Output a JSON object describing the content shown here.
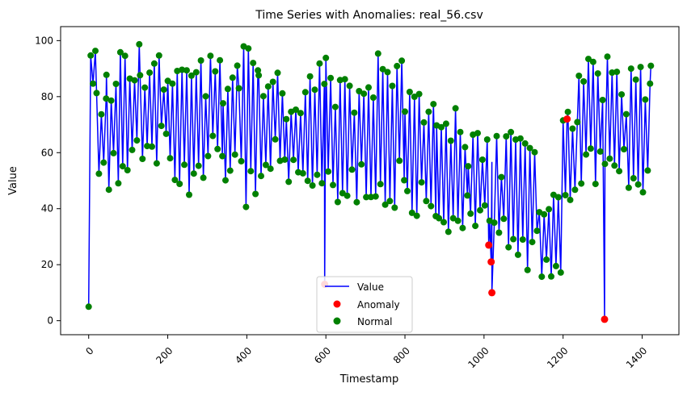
{
  "chart_data": {
    "type": "line",
    "title": "Time Series with Anomalies: real_56.csv",
    "xlabel": "Timestamp",
    "ylabel": "Value",
    "xlim": [
      -71,
      1493
    ],
    "ylim": [
      -5,
      105
    ],
    "xticks": [
      0,
      200,
      400,
      600,
      800,
      1000,
      1200,
      1400
    ],
    "yticks": [
      0,
      20,
      40,
      60,
      80,
      100
    ],
    "grid": false,
    "legend_position": "bottom-center",
    "legend": [
      {
        "label": "Value",
        "kind": "line",
        "color": "#0000ff"
      },
      {
        "label": "Anomaly",
        "kind": "point",
        "color": "#ff0000"
      },
      {
        "label": "Normal",
        "kind": "point",
        "color": "#008000"
      }
    ],
    "series": [
      {
        "name": "Value",
        "kind": "line",
        "color": "#0000ff",
        "n_points": 1422,
        "note_pattern": "oscillating values, sampled envelope per segment",
        "segments": [
          {
            "x": [
              0,
              5
            ],
            "low": 0,
            "high": 5
          },
          {
            "x": [
              5,
              20
            ],
            "low": 80,
            "high": 98
          },
          {
            "x": [
              20,
              45
            ],
            "low": 50,
            "high": 86
          },
          {
            "x": [
              45,
              80
            ],
            "low": 45,
            "high": 92
          },
          {
            "x": [
              80,
              130
            ],
            "low": 52,
            "high": 100
          },
          {
            "x": [
              130,
              200
            ],
            "low": 56,
            "high": 95
          },
          {
            "x": [
              200,
              260
            ],
            "low": 44,
            "high": 96
          },
          {
            "x": [
              260,
              340
            ],
            "low": 50,
            "high": 96
          },
          {
            "x": [
              340,
              380
            ],
            "low": 47,
            "high": 94
          },
          {
            "x": [
              380,
              430
            ],
            "low": 40,
            "high": 100
          },
          {
            "x": [
              430,
              500
            ],
            "low": 50,
            "high": 96
          },
          {
            "x": [
              500,
              560
            ],
            "low": 45,
            "high": 86
          },
          {
            "x": [
              560,
              600
            ],
            "low": 40,
            "high": 93
          },
          {
            "x": [
              600,
              660
            ],
            "low": 40,
            "high": 94
          },
          {
            "x": [
              660,
              720
            ],
            "low": 42,
            "high": 90
          },
          {
            "x": [
              720,
              800
            ],
            "low": 36,
            "high": 97
          },
          {
            "x": [
              800,
              880
            ],
            "low": 32,
            "high": 84
          },
          {
            "x": [
              880,
              960
            ],
            "low": 30,
            "high": 76
          },
          {
            "x": [
              960,
              1020
            ],
            "low": 26,
            "high": 70
          },
          {
            "x": [
              1020,
              1080
            ],
            "low": 20,
            "high": 68
          },
          {
            "x": [
              1080,
              1140
            ],
            "low": 14,
            "high": 68
          },
          {
            "x": [
              1140,
              1200
            ],
            "low": 10,
            "high": 46
          },
          {
            "x": [
              1200,
              1240
            ],
            "low": 40,
            "high": 80
          },
          {
            "x": [
              1240,
              1300
            ],
            "low": 48,
            "high": 96
          },
          {
            "x": [
              1300,
              1360
            ],
            "low": 47,
            "high": 95
          },
          {
            "x": [
              1360,
              1422
            ],
            "low": 37,
            "high": 91
          }
        ]
      },
      {
        "name": "Anomaly",
        "kind": "scatter",
        "color": "#ff0000",
        "points": [
          {
            "x": 597,
            "y": 13
          },
          {
            "x": 1012,
            "y": 27
          },
          {
            "x": 1018,
            "y": 21
          },
          {
            "x": 1020,
            "y": 10
          },
          {
            "x": 1210,
            "y": 72
          },
          {
            "x": 1305,
            "y": 0.5
          }
        ]
      },
      {
        "name": "Normal",
        "kind": "scatter",
        "color": "#008000",
        "points_from": "Value"
      }
    ]
  }
}
